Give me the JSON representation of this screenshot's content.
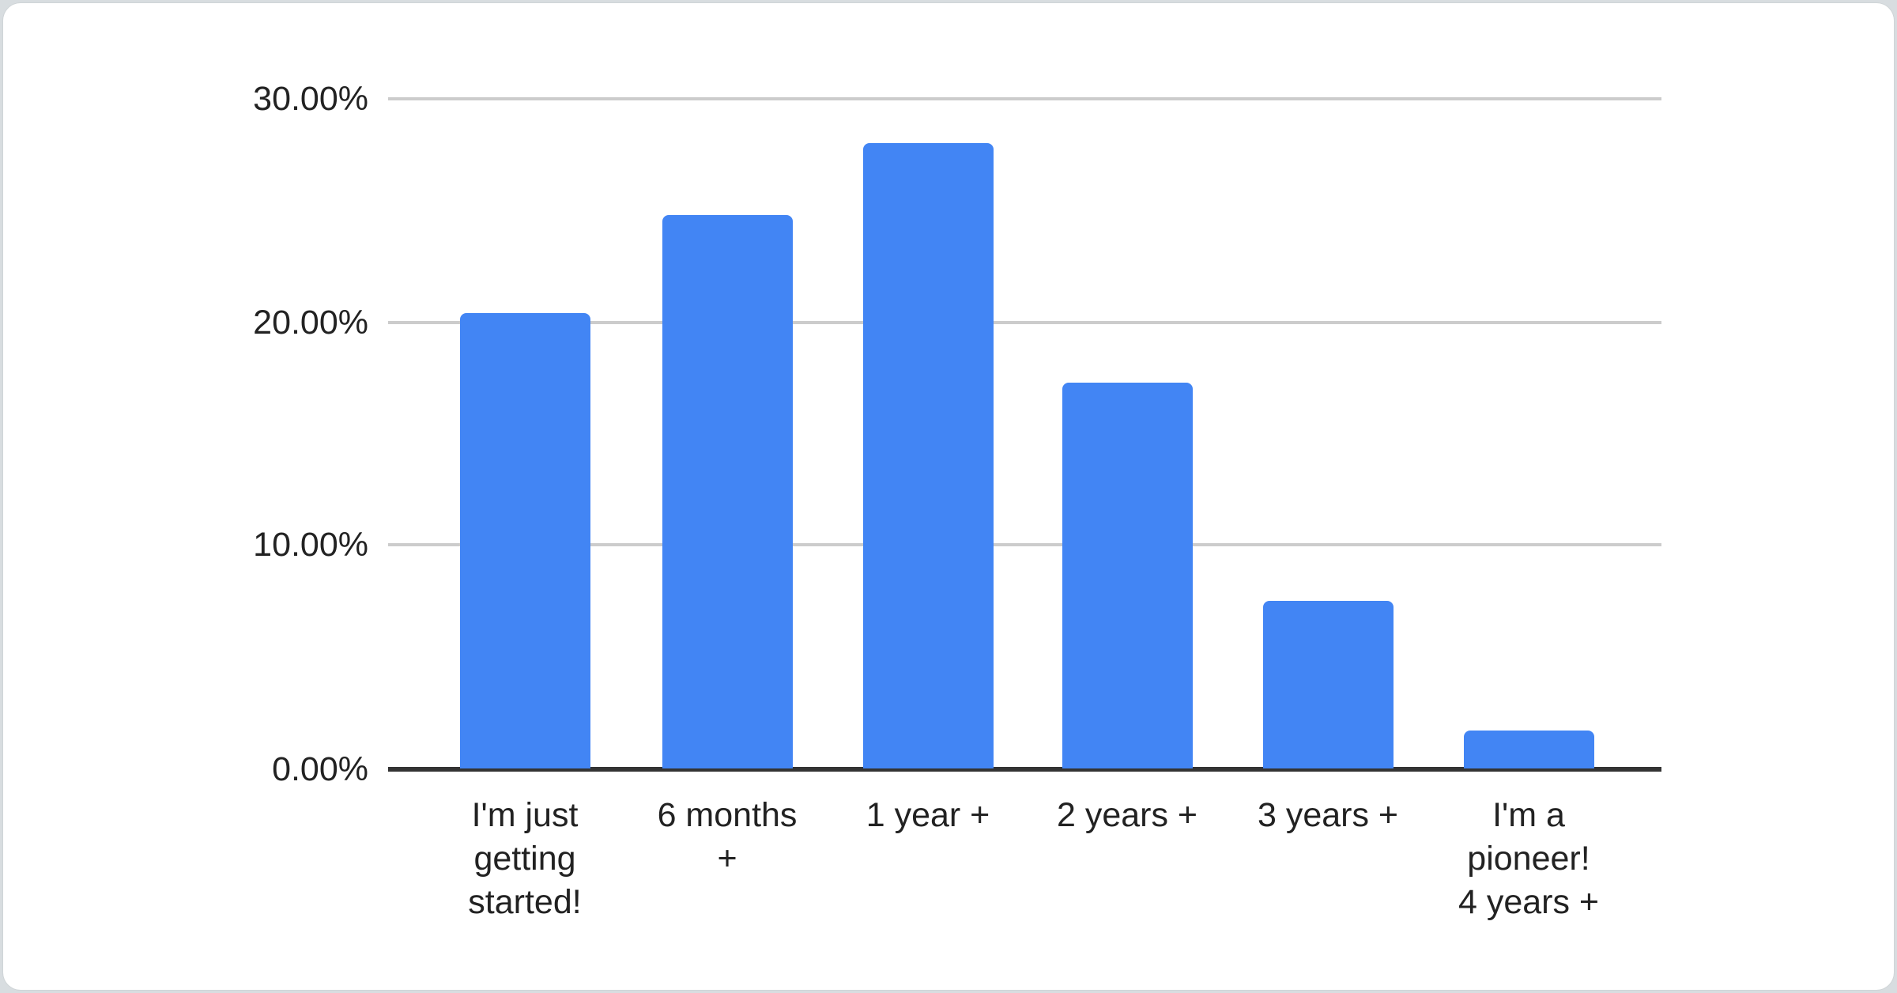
{
  "page": {
    "background": "#d8dde0",
    "card_background": "#ffffff"
  },
  "chart_data": {
    "type": "bar",
    "title": "",
    "xlabel": "",
    "ylabel": "",
    "categories": [
      "I'm just getting started!",
      "6 months +",
      "1 year +",
      "2 years +",
      "3 years +",
      "I'm a pioneer! 4 years +"
    ],
    "category_label_lines": [
      "I'm just\ngetting\nstarted!",
      "6 months\n+",
      "1 year +",
      "2 years +",
      "3 years +",
      "I'm a\npioneer!\n4 years +"
    ],
    "values": [
      20.4,
      24.8,
      28.0,
      17.3,
      7.5,
      1.7
    ],
    "unit": "%",
    "ylim": [
      0,
      30
    ],
    "y_ticks": [
      "30.00%",
      "20.00%",
      "10.00%",
      "0.00%"
    ],
    "y_tick_values": [
      30,
      20,
      10,
      0
    ],
    "grid": true,
    "legend_position": "none",
    "bar_color": "#4285f4",
    "axis_color": "#333333",
    "gridline_color": "#cccccc",
    "label_color": "#222222"
  }
}
